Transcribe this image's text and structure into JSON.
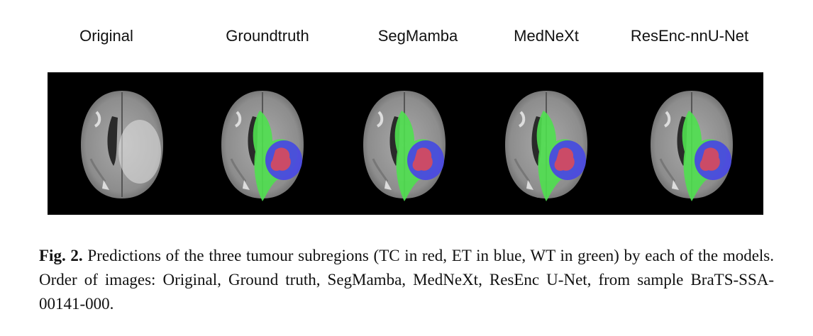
{
  "figure": {
    "columns": [
      "Original",
      "Groundtruth",
      "SegMamba",
      "MedNeXt",
      "ResEnc-nnU-Net"
    ]
  },
  "caption": {
    "label": "Fig. 2.",
    "text": "Predictions of the three tumour subregions (TC in red, ET in blue, WT in green) by each of the models. Order of images: Original, Ground truth, SegMamba, MedNeXt, ResEnc U-Net, from sample BraTS-SSA-00141-000."
  }
}
